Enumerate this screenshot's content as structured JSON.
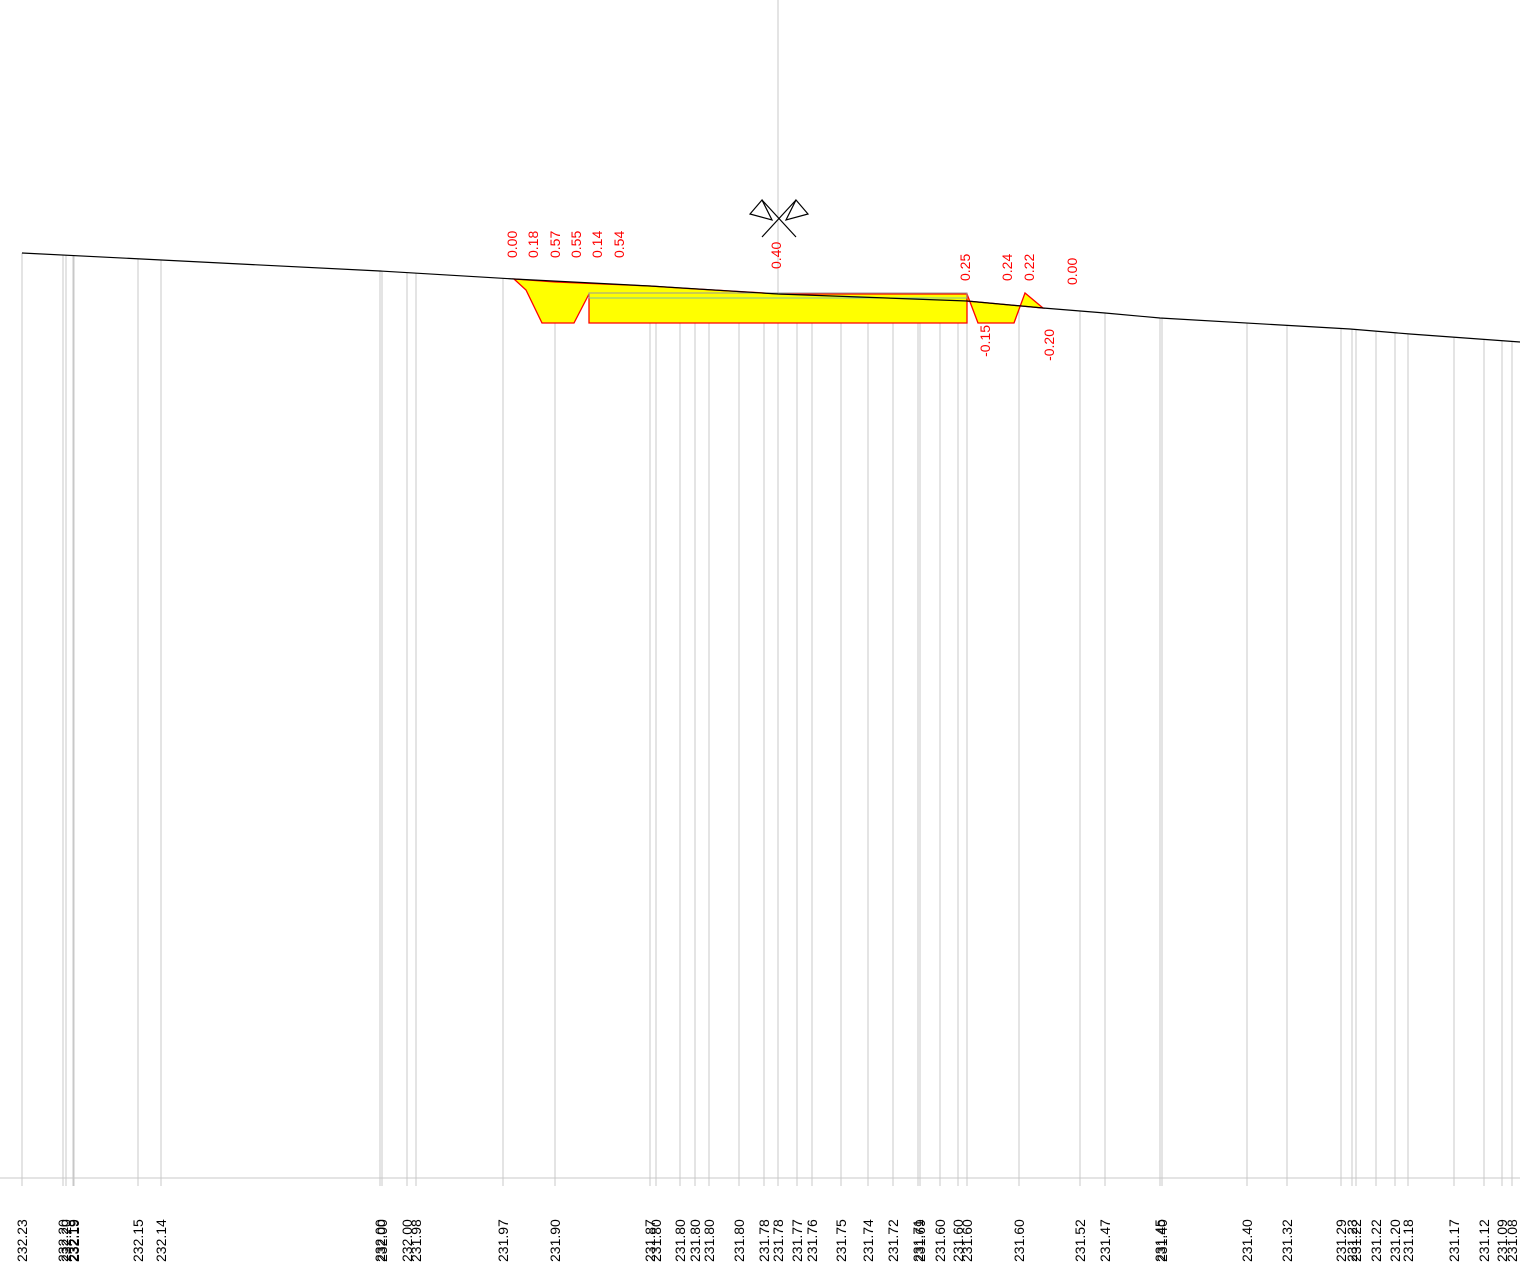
{
  "colors": {
    "background": "#ffffff",
    "ground_line": "#000000",
    "station_lines": "#c8c8c8",
    "fill": "#ffff00",
    "fill_outline": "#ff0000",
    "design_line": "#7fbf9f",
    "design_box": "#9a9a9a",
    "annotation_text": "#ff0000",
    "elevation_text": "#000000"
  },
  "axis_marker": {
    "icon": "centerline-flags-icon"
  },
  "elevation_labels": [
    "232.23",
    "232.20",
    "232.20",
    "232.19",
    "232.19",
    "232.15",
    "232.14",
    "232.00",
    "232.00",
    "232.00",
    "231.98",
    "231.97",
    "231.90",
    "231.87",
    "231.80",
    "231.80",
    "231.80",
    "231.80",
    "231.80",
    "231.78",
    "231.78",
    "231.77",
    "231.76",
    "231.75",
    "231.74",
    "231.72",
    "231.71",
    "231.69",
    "231.60",
    "231.60",
    "231.60",
    "231.60",
    "231.52",
    "231.47",
    "231.45",
    "231.40",
    "231.40",
    "231.32",
    "231.29",
    "231.23",
    "231.22",
    "231.22",
    "231.20",
    "231.18",
    "231.17",
    "231.12",
    "231.09",
    "231.08"
  ],
  "depth_labels": [
    "0.00",
    "0.18",
    "0.57",
    "0.55",
    "0.14",
    "0.54",
    "0.40",
    "0.25",
    "0.24",
    "0.22",
    "0.00",
    "-0.15",
    "-0.20"
  ]
}
